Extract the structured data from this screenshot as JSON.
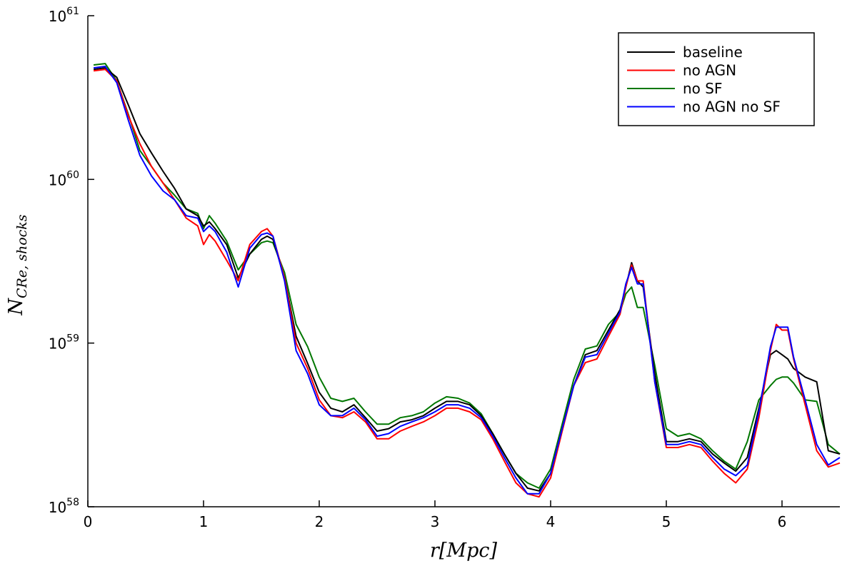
{
  "chart_data": {
    "type": "line",
    "xlabel": "r[Mpc]",
    "ylabel": "N_{CRe, shocks}",
    "ylabel_main": "N",
    "ylabel_sub": "CRe, shocks",
    "xlim": [
      0,
      6.5
    ],
    "ylim": [
      1e+58,
      1e+61
    ],
    "yscale": "log",
    "grid": false,
    "legend_position": "top-right",
    "x_ticks": [
      {
        "value": 0,
        "label": "0"
      },
      {
        "value": 1,
        "label": "1"
      },
      {
        "value": 2,
        "label": "2"
      },
      {
        "value": 3,
        "label": "3"
      },
      {
        "value": 4,
        "label": "4"
      },
      {
        "value": 5,
        "label": "5"
      },
      {
        "value": 6,
        "label": "6"
      }
    ],
    "y_ticks": [
      {
        "value": 58,
        "base": "10",
        "exp": "58"
      },
      {
        "value": 59,
        "base": "10",
        "exp": "59"
      },
      {
        "value": 60,
        "base": "10",
        "exp": "60"
      },
      {
        "value": 61,
        "base": "10",
        "exp": "61"
      }
    ],
    "x": [
      0.05,
      0.15,
      0.25,
      0.35,
      0.45,
      0.55,
      0.65,
      0.75,
      0.85,
      0.95,
      1.0,
      1.05,
      1.1,
      1.2,
      1.3,
      1.4,
      1.5,
      1.55,
      1.6,
      1.7,
      1.8,
      1.9,
      2.0,
      2.1,
      2.2,
      2.3,
      2.4,
      2.5,
      2.6,
      2.7,
      2.8,
      2.9,
      3.0,
      3.1,
      3.2,
      3.3,
      3.4,
      3.5,
      3.6,
      3.7,
      3.8,
      3.9,
      4.0,
      4.1,
      4.2,
      4.3,
      4.4,
      4.5,
      4.6,
      4.65,
      4.7,
      4.75,
      4.8,
      4.9,
      5.0,
      5.1,
      5.2,
      5.3,
      5.4,
      5.5,
      5.6,
      5.7,
      5.8,
      5.9,
      5.95,
      6.0,
      6.05,
      6.1,
      6.2,
      6.3,
      6.4,
      6.5
    ],
    "series": [
      {
        "name": "baseline",
        "color": "#000000",
        "values": [
          4.7e+60,
          4.8e+60,
          4.2e+60,
          2.85e+60,
          1.9e+60,
          1.45e+60,
          1.12e+60,
          8.8e+59,
          6.6e+59,
          6e+59,
          5.2e+59,
          5.5e+59,
          5e+59,
          4e+59,
          2.5e+59,
          3.5e+59,
          4.3e+59,
          4.5e+59,
          4.3e+59,
          2.5e+59,
          1.1e+59,
          7.5e+58,
          5e+58,
          4e+58,
          3.8e+58,
          4.2e+58,
          3.5e+58,
          2.9e+58,
          3e+58,
          3.3e+58,
          3.4e+58,
          3.6e+58,
          4e+58,
          4.4e+58,
          4.4e+58,
          4.2e+58,
          3.6e+58,
          2.8e+58,
          2.1e+58,
          1.6e+58,
          1.3e+58,
          1.25e+58,
          1.6e+58,
          3e+58,
          5.5e+58,
          8.5e+58,
          9e+58,
          1.2e+59,
          1.6e+59,
          2.2e+59,
          3.1e+59,
          2.4e+59,
          2.2e+59,
          6.5e+58,
          2.5e+58,
          2.5e+58,
          2.6e+58,
          2.5e+58,
          2.1e+58,
          1.85e+58,
          1.65e+58,
          2e+58,
          4e+58,
          8.5e+58,
          9e+58,
          8.5e+58,
          8e+58,
          7e+58,
          6.2e+58,
          5.8e+58,
          2.2e+58,
          2.1e+58
        ]
      },
      {
        "name": "no AGN",
        "color": "#ff0000",
        "values": [
          4.6e+60,
          4.7e+60,
          4e+60,
          2.45e+60,
          1.65e+60,
          1.2e+60,
          9.5e+59,
          7.5e+59,
          5.8e+59,
          5.2e+59,
          4e+59,
          4.6e+59,
          4.2e+59,
          3.2e+59,
          2.4e+59,
          4e+59,
          4.8e+59,
          5e+59,
          4.5e+59,
          2.5e+59,
          1e+59,
          7e+58,
          4.5e+58,
          3.6e+58,
          3.5e+58,
          3.8e+58,
          3.3e+58,
          2.6e+58,
          2.6e+58,
          2.9e+58,
          3.1e+58,
          3.3e+58,
          3.6e+58,
          4e+58,
          4e+58,
          3.8e+58,
          3.4e+58,
          2.6e+58,
          1.9e+58,
          1.4e+58,
          1.2e+58,
          1.15e+58,
          1.5e+58,
          2.9e+58,
          5.5e+58,
          7.6e+58,
          8e+58,
          1.1e+59,
          1.5e+59,
          2.2e+59,
          3e+59,
          2.4e+59,
          2.4e+59,
          5.8e+58,
          2.3e+58,
          2.3e+58,
          2.4e+58,
          2.3e+58,
          1.9e+58,
          1.6e+58,
          1.4e+58,
          1.7e+58,
          3.5e+58,
          9e+58,
          1.3e+59,
          1.2e+59,
          1.2e+59,
          8e+58,
          4.2e+58,
          2.2e+58,
          1.75e+58,
          1.85e+58
        ]
      },
      {
        "name": "no SF",
        "color": "#007700",
        "values": [
          5e+60,
          5.1e+60,
          4e+60,
          2.5e+60,
          1.5e+60,
          1.2e+60,
          9.5e+59,
          8e+59,
          6.6e+59,
          6.2e+59,
          5e+59,
          6e+59,
          5.4e+59,
          4.2e+59,
          2.8e+59,
          3.5e+59,
          4.1e+59,
          4.2e+59,
          4.1e+59,
          2.7e+59,
          1.3e+59,
          9.5e+58,
          6.2e+58,
          4.6e+58,
          4.4e+58,
          4.6e+58,
          3.8e+58,
          3.2e+58,
          3.2e+58,
          3.5e+58,
          3.6e+58,
          3.8e+58,
          4.3e+58,
          4.7e+58,
          4.6e+58,
          4.3e+58,
          3.7e+58,
          2.8e+58,
          2.1e+58,
          1.6e+58,
          1.4e+58,
          1.3e+58,
          1.7e+58,
          3.2e+58,
          6e+58,
          9.2e+58,
          9.6e+58,
          1.3e+59,
          1.55e+59,
          2e+59,
          2.2e+59,
          1.65e+59,
          1.65e+59,
          7.3e+58,
          3e+58,
          2.7e+58,
          2.8e+58,
          2.6e+58,
          2.2e+58,
          1.9e+58,
          1.7e+58,
          2.5e+58,
          4.5e+58,
          5.5e+58,
          6e+58,
          6.2e+58,
          6.2e+58,
          5.7e+58,
          4.5e+58,
          4.4e+58,
          2.4e+58,
          2.1e+58
        ]
      },
      {
        "name": "no AGN no SF",
        "color": "#0000ff",
        "values": [
          4.8e+60,
          4.9e+60,
          3.9e+60,
          2.3e+60,
          1.4e+60,
          1.05e+60,
          8.5e+59,
          7.5e+59,
          6e+59,
          5.8e+59,
          4.8e+59,
          5.2e+59,
          4.8e+59,
          3.6e+59,
          2.2e+59,
          3.8e+59,
          4.6e+59,
          4.7e+59,
          4.5e+59,
          2.4e+59,
          9e+58,
          6.5e+58,
          4.2e+58,
          3.6e+58,
          3.6e+58,
          4e+58,
          3.4e+58,
          2.7e+58,
          2.8e+58,
          3.1e+58,
          3.3e+58,
          3.5e+58,
          3.8e+58,
          4.2e+58,
          4.2e+58,
          4e+58,
          3.5e+58,
          2.7e+58,
          2e+58,
          1.5e+58,
          1.2e+58,
          1.2e+58,
          1.6e+58,
          3e+58,
          5.5e+58,
          8.2e+58,
          8.5e+58,
          1.15e+59,
          1.55e+59,
          2.3e+59,
          2.9e+59,
          2.3e+59,
          2.3e+59,
          5.8e+58,
          2.4e+58,
          2.4e+58,
          2.5e+58,
          2.4e+58,
          2e+58,
          1.7e+58,
          1.55e+58,
          1.8e+58,
          3.8e+58,
          9.5e+58,
          1.25e+59,
          1.25e+59,
          1.25e+59,
          8.2e+58,
          4.5e+58,
          2.4e+58,
          1.8e+58,
          2e+58
        ]
      }
    ]
  }
}
